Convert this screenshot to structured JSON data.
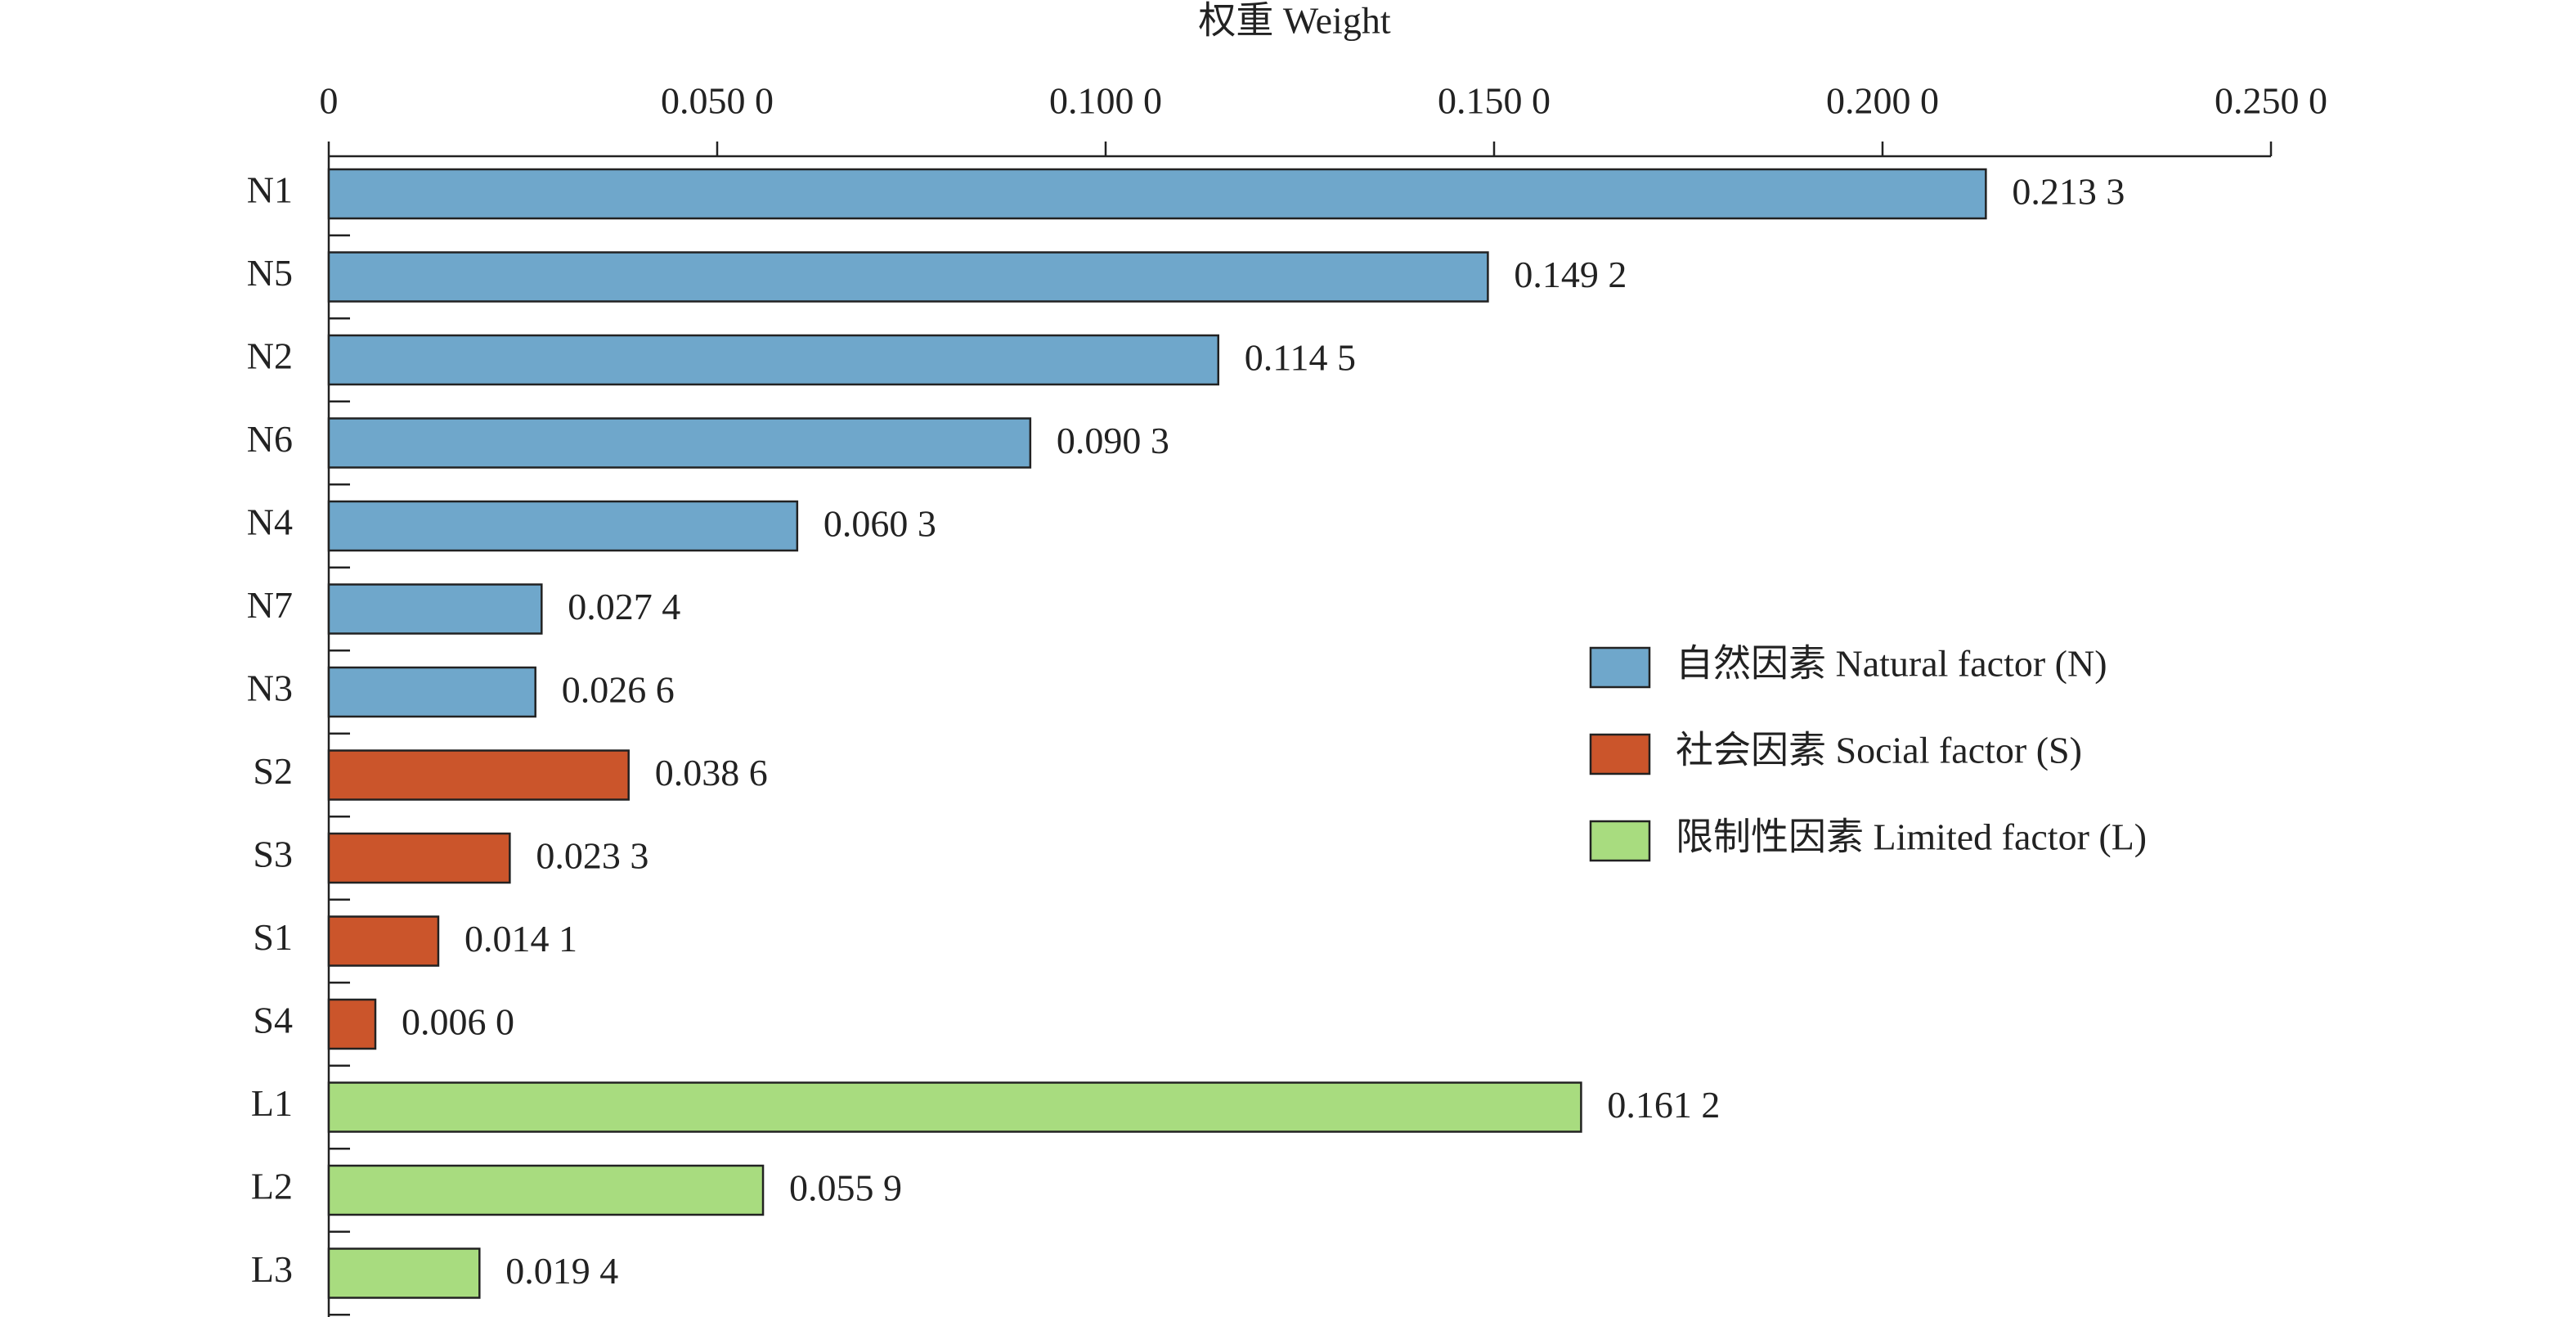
{
  "chart_data": {
    "type": "hbar",
    "x_label": "权重 Weight",
    "categories": [
      "N1",
      "N5",
      "N2",
      "N6",
      "N4",
      "N7",
      "N3",
      "S2",
      "S3",
      "S1",
      "S4",
      "L1",
      "L2",
      "L3"
    ],
    "series": [
      {
        "name": "自然因素 Natural factor (N)",
        "color": "#6fa7cb",
        "values": [
          0.2133,
          0.1492,
          0.1145,
          0.0903,
          0.0603,
          0.0274,
          0.0266,
          null,
          null,
          null,
          null,
          null,
          null,
          null
        ],
        "value_labels": [
          "0.213 3",
          "0.149 2",
          "0.114 5",
          "0.090 3",
          "0.060 3",
          "0.027 4",
          "0.026 6",
          null,
          null,
          null,
          null,
          null,
          null,
          null
        ]
      },
      {
        "name": "社会因素 Social factor (S)",
        "color": "#cb552b",
        "values": [
          null,
          null,
          null,
          null,
          null,
          null,
          null,
          0.0386,
          0.0233,
          0.0141,
          0.006,
          null,
          null,
          null
        ],
        "value_labels": [
          null,
          null,
          null,
          null,
          null,
          null,
          null,
          "0.038 6",
          "0.023 3",
          "0.014 1",
          "0.006 0",
          null,
          null,
          null
        ]
      },
      {
        "name": "限制性因素 Limited factor (L)",
        "color": "#a8dc7f",
        "values": [
          null,
          null,
          null,
          null,
          null,
          null,
          null,
          null,
          null,
          null,
          null,
          0.1612,
          0.0559,
          0.0194
        ],
        "value_labels": [
          null,
          null,
          null,
          null,
          null,
          null,
          null,
          null,
          null,
          null,
          null,
          "0.161 2",
          "0.055 9",
          "0.019 4"
        ]
      }
    ],
    "xlim": [
      0,
      0.25
    ],
    "xticks": [
      0,
      {
        "value": 0.05,
        "label": "0.050 0"
      },
      {
        "value": 0.1,
        "label": "0.100 0"
      },
      {
        "value": 0.15,
        "label": "0.150 0"
      },
      {
        "value": 0.2,
        "label": "0.200 0"
      },
      {
        "value": 0.25,
        "label": "0.250 0"
      }
    ],
    "legend": "right"
  }
}
